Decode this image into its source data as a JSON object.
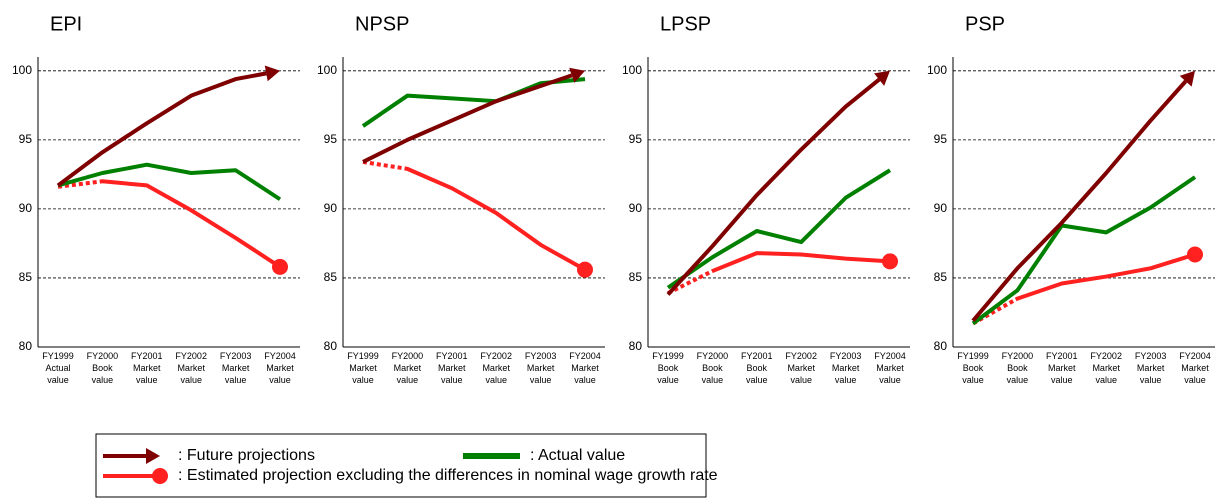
{
  "chart_data": [
    {
      "type": "line",
      "title": "EPI",
      "categories": [
        [
          "FY1999",
          "Actual",
          "value"
        ],
        [
          "FY2000",
          "Book",
          "value"
        ],
        [
          "FY2001",
          "Market",
          "value"
        ],
        [
          "FY2002",
          "Market",
          "value"
        ],
        [
          "FY2003",
          "Market",
          "value"
        ],
        [
          "FY2004",
          "Market",
          "value"
        ]
      ],
      "series": [
        {
          "name": ": Future projections",
          "color": "#7f0000",
          "end": "arrow",
          "values": [
            91.7,
            94.1,
            96.2,
            98.2,
            99.4,
            100
          ]
        },
        {
          "name": ": Actual value",
          "color": "#008000",
          "values": [
            91.7,
            92.6,
            93.2,
            92.6,
            92.8,
            90.7
          ]
        },
        {
          "name": ": Estimated projection excluding the differences in nominal wage growth rate",
          "color": "#ff2020",
          "end": "dot",
          "first_segment": "dashed",
          "values": [
            91.6,
            92.0,
            91.7,
            89.9,
            87.9,
            85.8
          ]
        }
      ],
      "ylim": [
        80,
        101
      ],
      "yticks": [
        80,
        85,
        90,
        95,
        100
      ],
      "grid": true
    },
    {
      "type": "line",
      "title": "NPSP",
      "categories": [
        [
          "FY1999",
          "Market",
          "value"
        ],
        [
          "FY2000",
          "Market",
          "value"
        ],
        [
          "FY2001",
          "Market",
          "value"
        ],
        [
          "FY2002",
          "Market",
          "value"
        ],
        [
          "FY2003",
          "Market",
          "value"
        ],
        [
          "FY2004",
          "Market",
          "value"
        ]
      ],
      "series": [
        {
          "name": ": Future projections",
          "color": "#7f0000",
          "end": "arrow",
          "values": [
            93.4,
            95.0,
            96.4,
            97.8,
            98.9,
            100
          ]
        },
        {
          "name": ": Actual value",
          "color": "#008000",
          "values": [
            96.0,
            98.2,
            98.0,
            97.8,
            99.1,
            99.4
          ]
        },
        {
          "name": ": Estimated projection excluding the differences in nominal wage growth rate",
          "color": "#ff2020",
          "end": "dot",
          "first_segment": "dashed",
          "values": [
            93.4,
            92.9,
            91.5,
            89.7,
            87.4,
            85.6
          ]
        }
      ],
      "ylim": [
        80,
        101
      ],
      "yticks": [
        80,
        85,
        90,
        95,
        100
      ],
      "grid": true
    },
    {
      "type": "line",
      "title": "LPSP",
      "categories": [
        [
          "FY1999",
          "Book",
          "value"
        ],
        [
          "FY2000",
          "Book",
          "value"
        ],
        [
          "FY2001",
          "Book",
          "value"
        ],
        [
          "FY2002",
          "Market",
          "value"
        ],
        [
          "FY2003",
          "Market",
          "value"
        ],
        [
          "FY2004",
          "Market",
          "value"
        ]
      ],
      "series": [
        {
          "name": ": Future projections",
          "color": "#7f0000",
          "end": "arrow",
          "values": [
            83.8,
            87.3,
            91.0,
            94.3,
            97.4,
            100
          ]
        },
        {
          "name": ": Actual value",
          "color": "#008000",
          "values": [
            84.3,
            86.5,
            88.4,
            87.6,
            90.8,
            92.8
          ]
        },
        {
          "name": ": Estimated projection excluding the differences in nominal wage growth rate",
          "color": "#ff2020",
          "end": "dot",
          "first_segment": "dashed",
          "values": [
            83.9,
            85.5,
            86.8,
            86.7,
            86.4,
            86.2
          ]
        }
      ],
      "ylim": [
        80,
        101
      ],
      "yticks": [
        80,
        85,
        90,
        95,
        100
      ],
      "grid": true
    },
    {
      "type": "line",
      "title": "PSP",
      "categories": [
        [
          "FY1999",
          "Book",
          "value"
        ],
        [
          "FY2000",
          "Book",
          "value"
        ],
        [
          "FY2001",
          "Market",
          "value"
        ],
        [
          "FY2002",
          "Market",
          "value"
        ],
        [
          "FY2003",
          "Market",
          "value"
        ],
        [
          "FY2004",
          "Market",
          "value"
        ]
      ],
      "series": [
        {
          "name": ": Future projections",
          "color": "#7f0000",
          "end": "arrow",
          "values": [
            81.9,
            85.7,
            89.0,
            92.6,
            96.4,
            100
          ]
        },
        {
          "name": ": Actual value",
          "color": "#008000",
          "values": [
            81.7,
            84.1,
            88.8,
            88.3,
            90.1,
            92.3
          ]
        },
        {
          "name": ": Estimated projection excluding the differences in nominal wage growth rate",
          "color": "#ff2020",
          "end": "dot",
          "first_segment": "dashed",
          "values": [
            81.7,
            83.5,
            84.6,
            85.1,
            85.7,
            86.7
          ]
        }
      ],
      "ylim": [
        80,
        101
      ],
      "yticks": [
        80,
        85,
        90,
        95,
        100
      ],
      "grid": true
    }
  ]
}
